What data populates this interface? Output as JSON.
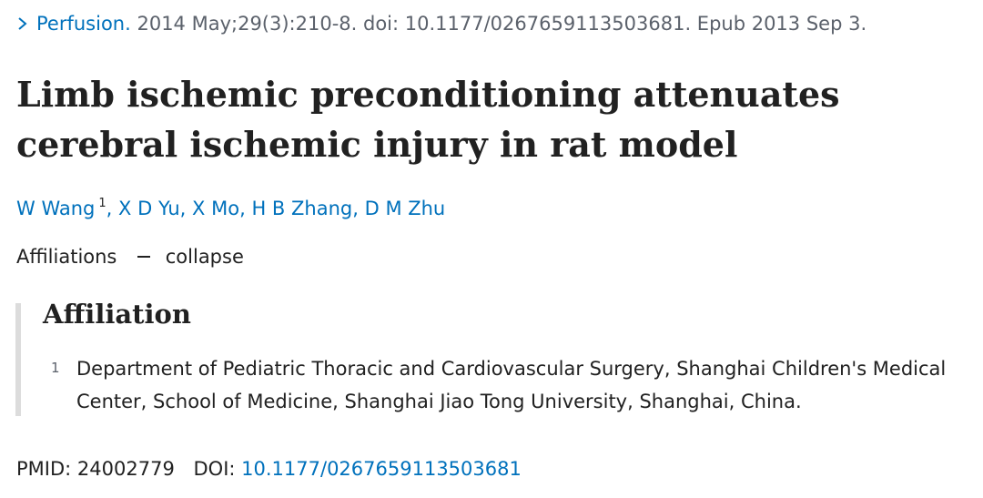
{
  "citation": {
    "journal": "Perfusion.",
    "details": "2014 May;29(3):210-8. doi: 10.1177/0267659113503681. Epub 2013 Sep 3."
  },
  "title": "Limb ischemic preconditioning attenuates cerebral ischemic injury in rat model",
  "authors": [
    {
      "name": "W Wang",
      "sup": "1",
      "sep": ","
    },
    {
      "name": "X D Yu",
      "sep": ","
    },
    {
      "name": "X Mo",
      "sep": ","
    },
    {
      "name": "H B Zhang",
      "sep": ","
    },
    {
      "name": "D M Zhu"
    }
  ],
  "affiliations_toggle": {
    "label": "Affiliations",
    "action": "collapse"
  },
  "affiliation_section": {
    "heading": "Affiliation",
    "items": [
      {
        "number": "1",
        "text": "Department of Pediatric Thoracic and Cardiovascular Surgery, Shanghai Children's Medical Center, School of Medicine, Shanghai Jiao Tong University, Shanghai, China."
      }
    ]
  },
  "identifiers": {
    "pmid_label": "PMID:",
    "pmid": "24002779",
    "doi_label": "DOI:",
    "doi": "10.1177/0267659113503681"
  }
}
